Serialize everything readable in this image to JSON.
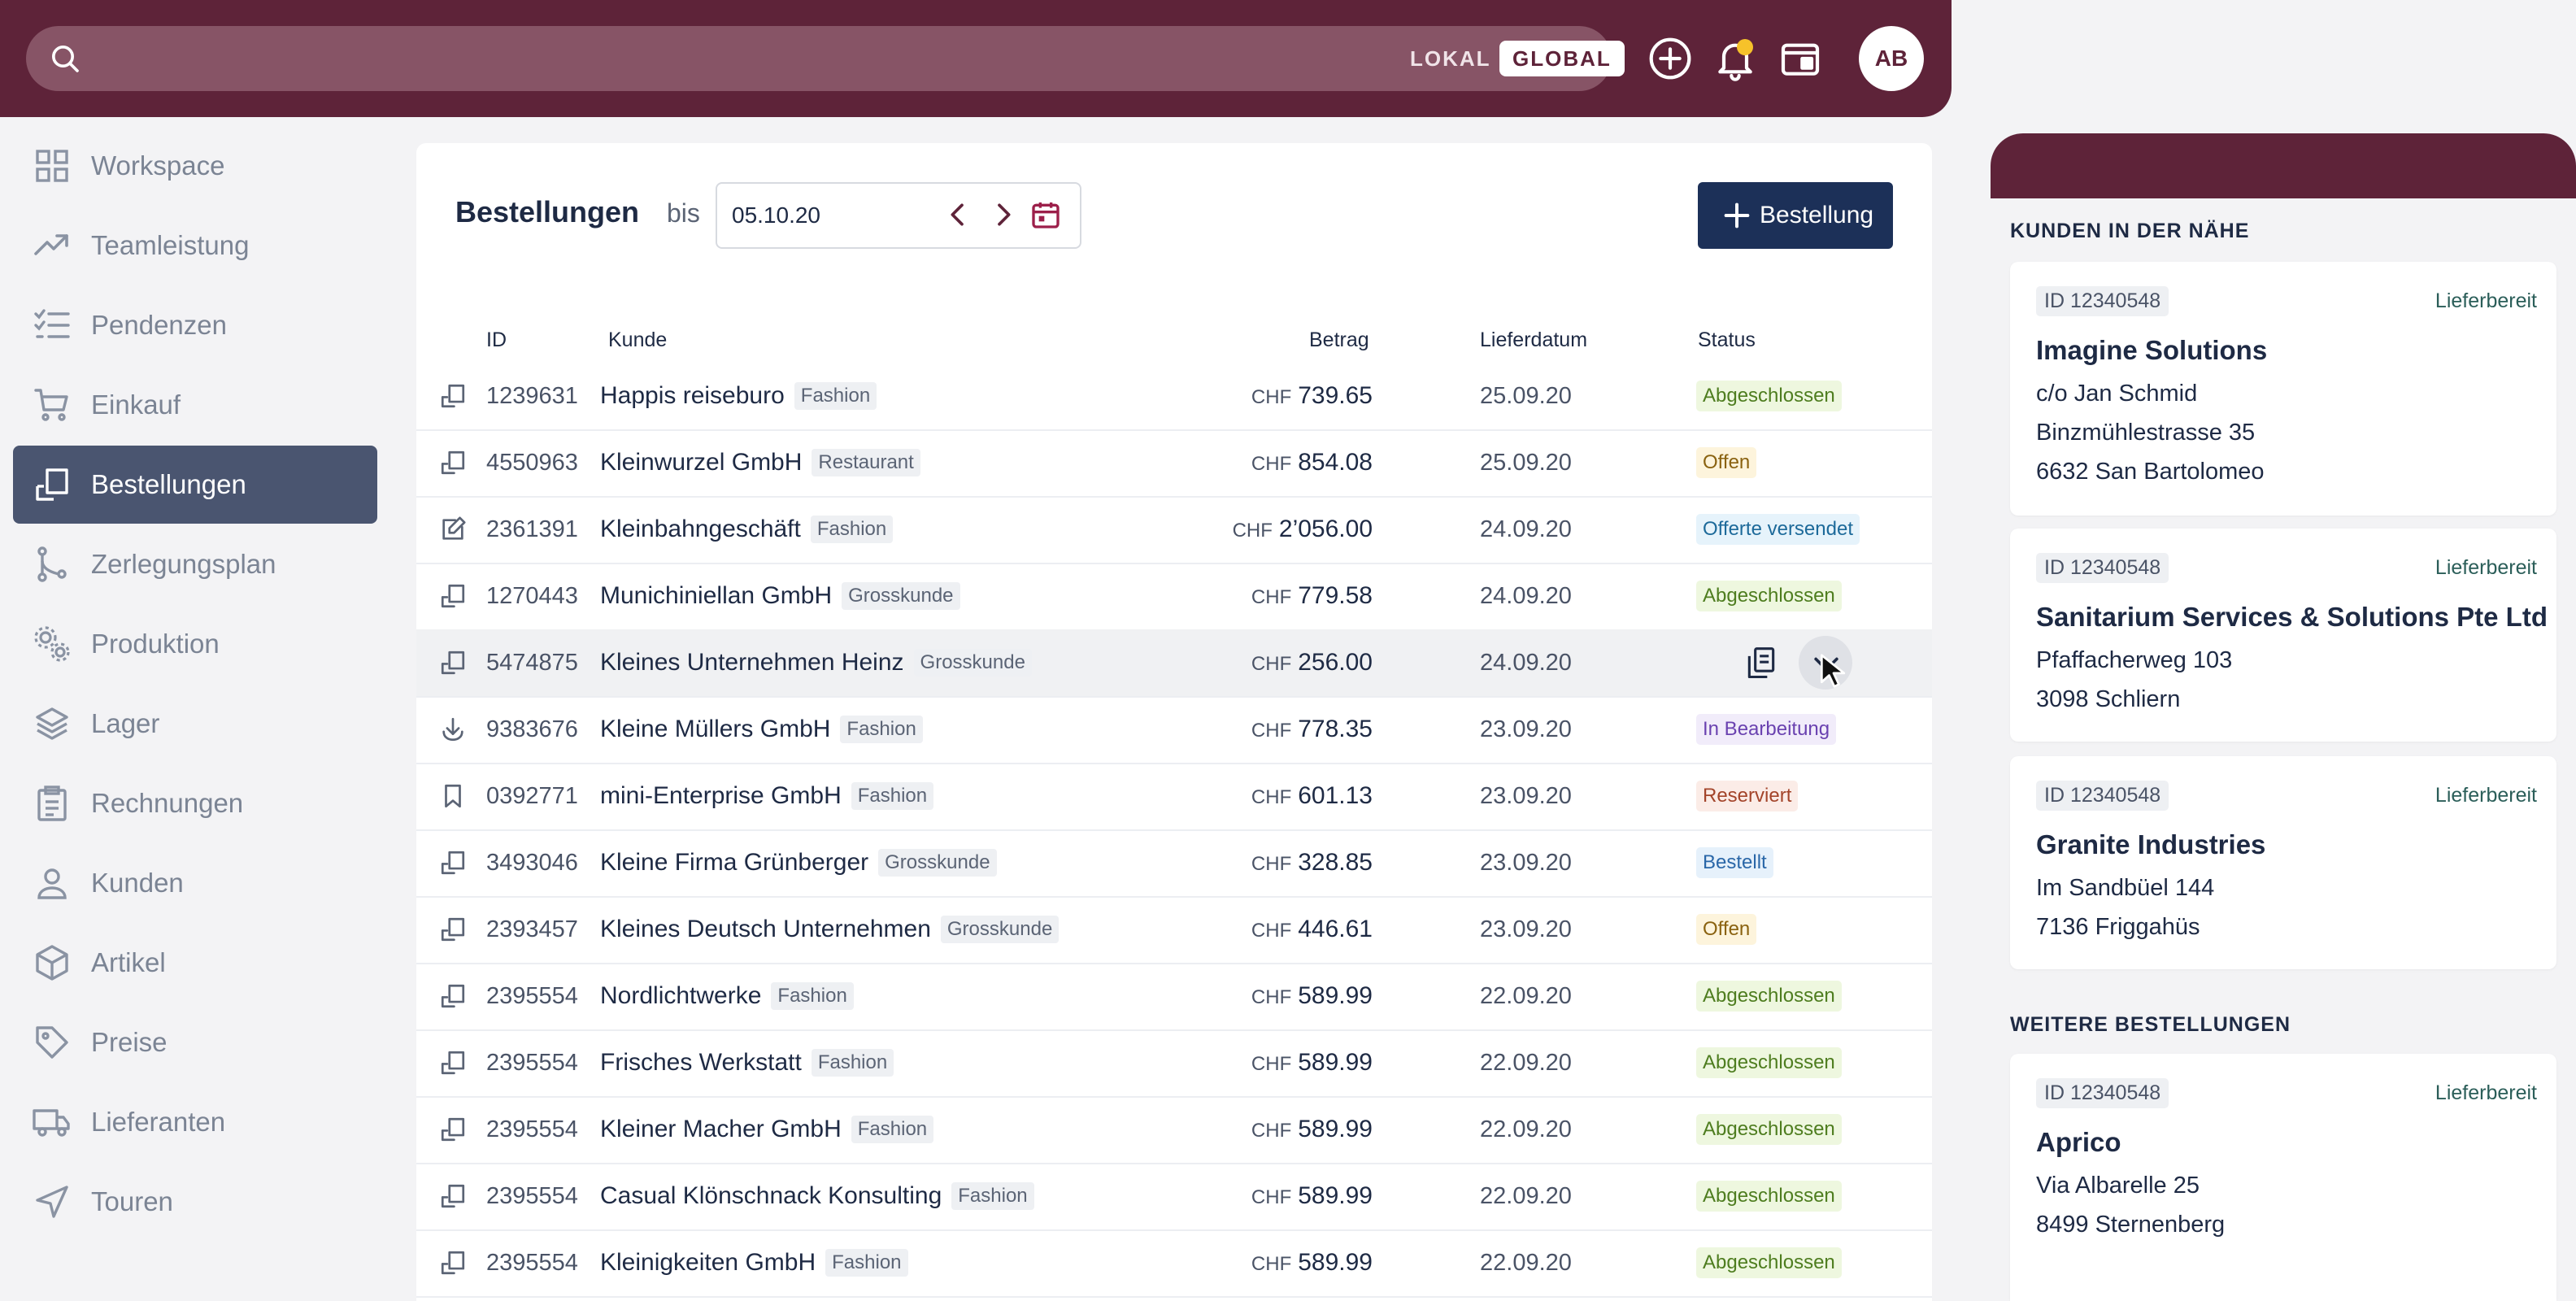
{
  "topbar": {
    "search_placeholder": "",
    "scope_local": "LOKAL",
    "scope_global": "GLOBAL",
    "avatar_initials": "AB",
    "notification_dot_color": "#f6c22a"
  },
  "colors": {
    "brand": "#5e2339",
    "primary_button": "#1c3058",
    "nav_active": "#4a5570"
  },
  "sidebar": {
    "items": [
      {
        "label": "Workspace",
        "icon": "grid-icon"
      },
      {
        "label": "Teamleistung",
        "icon": "trending-up-icon"
      },
      {
        "label": "Pendenzen",
        "icon": "checklist-icon"
      },
      {
        "label": "Einkauf",
        "icon": "cart-icon"
      },
      {
        "label": "Bestellungen",
        "icon": "order-icon",
        "active": true
      },
      {
        "label": "Zerlegungsplan",
        "icon": "branch-icon"
      },
      {
        "label": "Produktion",
        "icon": "gears-icon"
      },
      {
        "label": "Lager",
        "icon": "layers-icon"
      },
      {
        "label": "Rechnungen",
        "icon": "clipboard-icon"
      },
      {
        "label": "Kunden",
        "icon": "user-icon"
      },
      {
        "label": "Artikel",
        "icon": "box-icon"
      },
      {
        "label": "Preise",
        "icon": "tag-icon"
      },
      {
        "label": "Lieferanten",
        "icon": "truck-icon"
      },
      {
        "label": "Touren",
        "icon": "navigation-icon"
      }
    ]
  },
  "main": {
    "title": "Bestellungen",
    "bis_label": "bis",
    "date_value": "05.10.20",
    "new_button_label": "Bestellung",
    "columns": {
      "id": "ID",
      "kunde": "Kunde",
      "betrag": "Betrag",
      "lieferdatum": "Lieferdatum",
      "status": "Status"
    },
    "rows": [
      {
        "icon": "order-icon",
        "id": "1239631",
        "customer": "Happis reiseburo",
        "tag": "Fashion",
        "currency": "CHF",
        "amount": "739.65",
        "date": "25.09.20",
        "status": "Abgeschlossen"
      },
      {
        "icon": "order-icon",
        "id": "4550963",
        "customer": "Kleinwurzel GmbH",
        "tag": "Restaurant",
        "currency": "CHF",
        "amount": "854.08",
        "date": "25.09.20",
        "status": "Offen"
      },
      {
        "icon": "edit-icon",
        "id": "2361391",
        "customer": "Kleinbahngeschäft",
        "tag": "Fashion",
        "currency": "CHF",
        "amount": "2’056.00",
        "date": "24.09.20",
        "status": "Offerte versendet"
      },
      {
        "icon": "order-icon",
        "id": "1270443",
        "customer": "Munichiniellan GmbH",
        "tag": "Grosskunde",
        "currency": "CHF",
        "amount": "779.58",
        "date": "24.09.20",
        "status": "Abgeschlossen"
      },
      {
        "icon": "order-icon",
        "id": "5474875",
        "customer": "Kleines Unternehmen Heinz",
        "tag": "Grosskunde",
        "currency": "CHF",
        "amount": "256.00",
        "date": "24.09.20",
        "status": "",
        "hover": true
      },
      {
        "icon": "download-icon",
        "id": "9383676",
        "customer": "Kleine Müllers GmbH",
        "tag": "Fashion",
        "currency": "CHF",
        "amount": "778.35",
        "date": "23.09.20",
        "status": "In Bearbeitung"
      },
      {
        "icon": "bookmark-icon",
        "id": "0392771",
        "customer": "mini-Enterprise GmbH",
        "tag": "Fashion",
        "currency": "CHF",
        "amount": "601.13",
        "date": "23.09.20",
        "status": "Reserviert"
      },
      {
        "icon": "order-icon",
        "id": "3493046",
        "customer": "Kleine Firma Grünberger",
        "tag": "Grosskunde",
        "currency": "CHF",
        "amount": "328.85",
        "date": "23.09.20",
        "status": "Bestellt"
      },
      {
        "icon": "order-icon",
        "id": "2393457",
        "customer": "Kleines Deutsch Unternehmen",
        "tag": "Grosskunde",
        "currency": "CHF",
        "amount": "446.61",
        "date": "23.09.20",
        "status": "Offen"
      },
      {
        "icon": "order-icon",
        "id": "2395554",
        "customer": "Nordlichtwerke",
        "tag": "Fashion",
        "currency": "CHF",
        "amount": "589.99",
        "date": "22.09.20",
        "status": "Abgeschlossen"
      },
      {
        "icon": "order-icon",
        "id": "2395554",
        "customer": "Frisches Werkstatt",
        "tag": "Fashion",
        "currency": "CHF",
        "amount": "589.99",
        "date": "22.09.20",
        "status": "Abgeschlossen"
      },
      {
        "icon": "order-icon",
        "id": "2395554",
        "customer": "Kleiner Macher GmbH",
        "tag": "Fashion",
        "currency": "CHF",
        "amount": "589.99",
        "date": "22.09.20",
        "status": "Abgeschlossen"
      },
      {
        "icon": "order-icon",
        "id": "2395554",
        "customer": "Casual Klönschnack Konsulting",
        "tag": "Fashion",
        "currency": "CHF",
        "amount": "589.99",
        "date": "22.09.20",
        "status": "Abgeschlossen"
      },
      {
        "icon": "order-icon",
        "id": "2395554",
        "customer": "Kleinigkeiten GmbH",
        "tag": "Fashion",
        "currency": "CHF",
        "amount": "589.99",
        "date": "22.09.20",
        "status": "Abgeschlossen"
      }
    ],
    "status_colors": {
      "Abgeschlossen": {
        "bg": "#eef7df",
        "fg": "#4e7d1f"
      },
      "Offen": {
        "bg": "#fdf4dc",
        "fg": "#8a6210"
      },
      "Offerte versendet": {
        "bg": "#e6f3fb",
        "fg": "#1d6a9a"
      },
      "In Bearbeitung": {
        "bg": "#f1ecfa",
        "fg": "#6a42b0"
      },
      "Reserviert": {
        "bg": "#fbece7",
        "fg": "#a3442a"
      },
      "Bestellt": {
        "bg": "#e6f1fb",
        "fg": "#2a67a8"
      }
    }
  },
  "right_panel": {
    "nearby_title": "KUNDEN IN DER NÄHE",
    "more_title": "WEITERE BESTELLUNGEN",
    "nearby": [
      {
        "id": "ID 12340548",
        "status": "Lieferbereit",
        "name": "Imagine Solutions",
        "lines": [
          "c/o Jan Schmid",
          "Binzmühlestrasse 35",
          "6632 San Bartolomeo"
        ]
      },
      {
        "id": "ID 12340548",
        "status": "Lieferbereit",
        "name": "Sanitarium Services & Solutions Pte Ltd",
        "lines": [
          "Pfaffacherweg 103",
          "3098 Schliern"
        ]
      },
      {
        "id": "ID 12340548",
        "status": "Lieferbereit",
        "name": "Granite Industries",
        "lines": [
          "Im Sandbüel 144",
          "7136 Friggahüs"
        ]
      }
    ],
    "more": [
      {
        "id": "ID 12340548",
        "status": "Lieferbereit",
        "name": "Aprico",
        "lines": [
          "Via Albarelle 25",
          "8499 Sternenberg"
        ]
      }
    ]
  }
}
